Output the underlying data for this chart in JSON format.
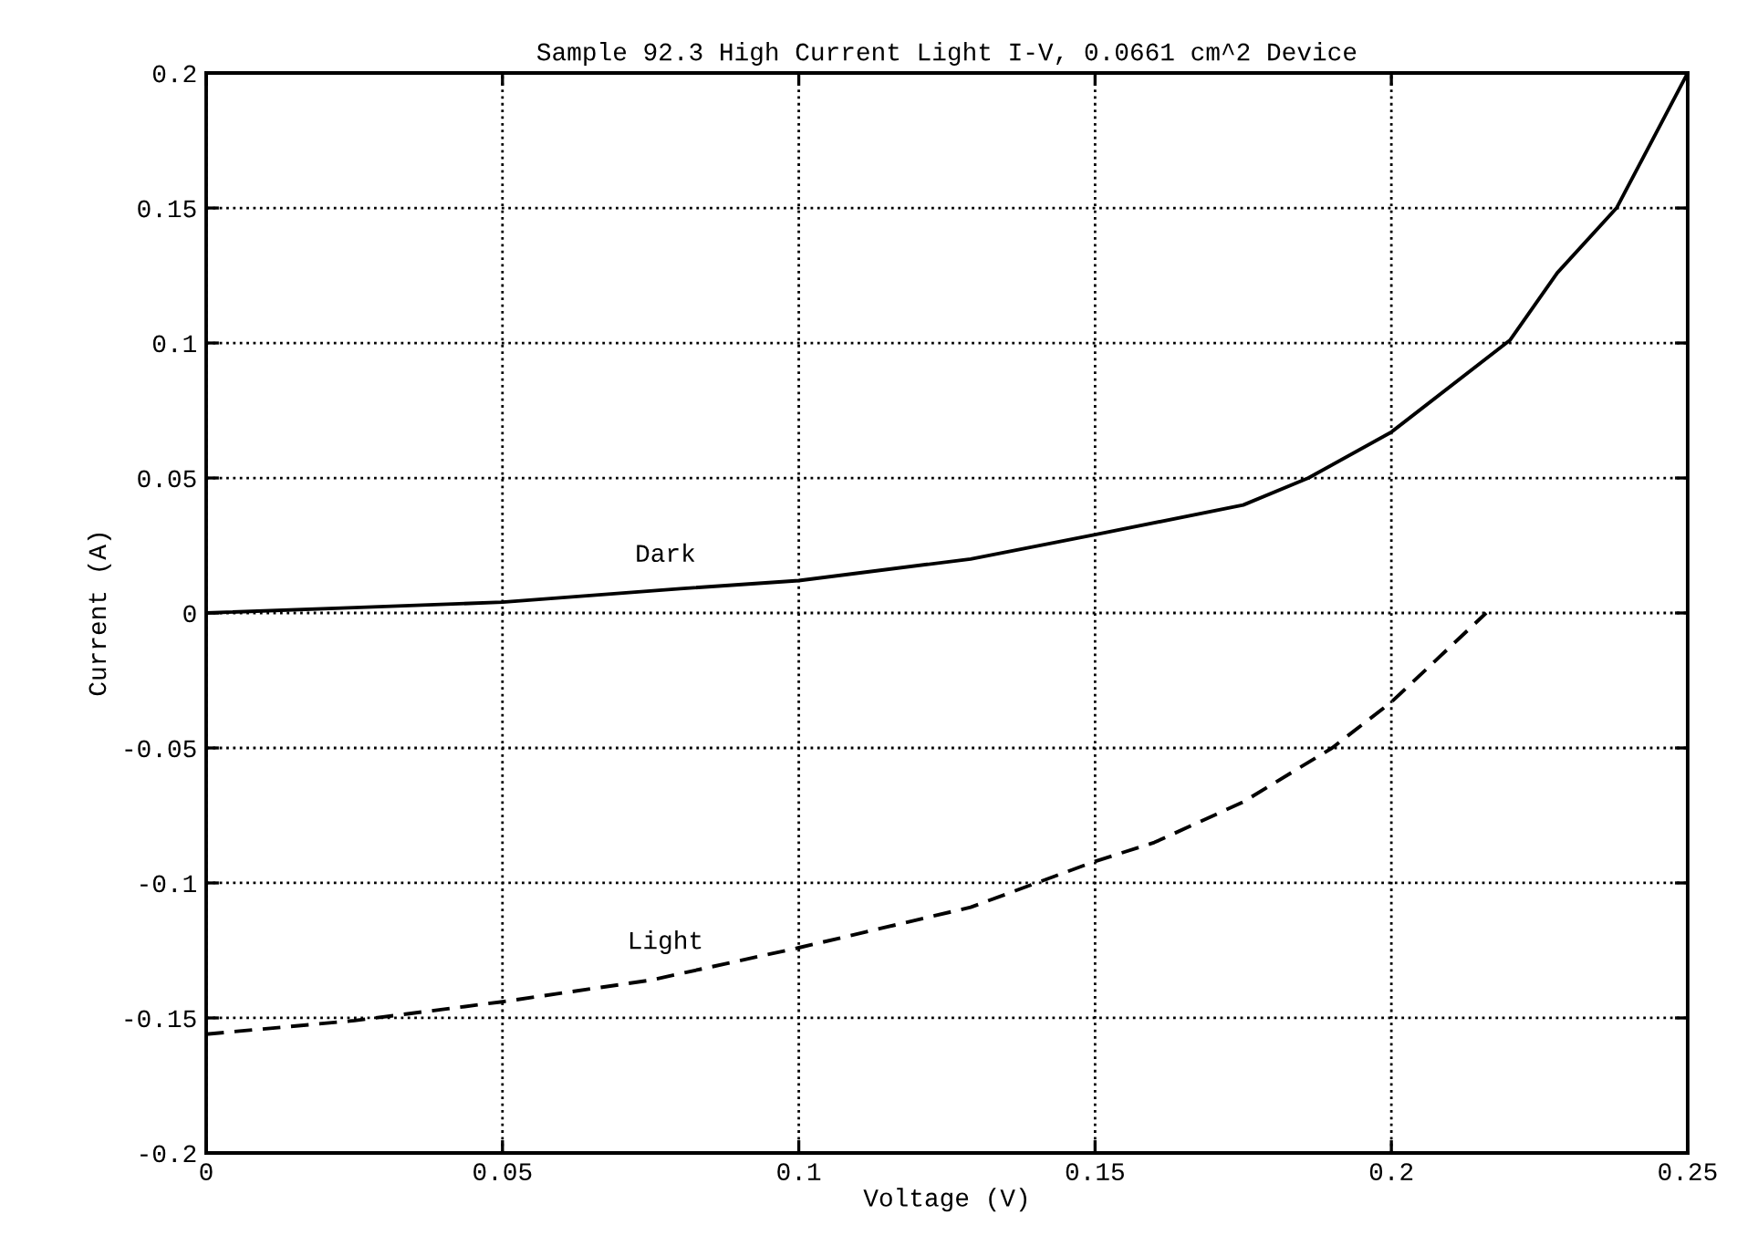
{
  "chart_data": {
    "type": "line",
    "title": "Sample 92.3 High Current Light I-V, 0.0661 cm^2 Device",
    "xlabel": "Voltage (V)",
    "ylabel": "Current (A)",
    "xlim": [
      0,
      0.25
    ],
    "ylim": [
      -0.2,
      0.2
    ],
    "xticks": [
      0,
      0.05,
      0.1,
      0.15,
      0.2,
      0.25
    ],
    "yticks": [
      -0.2,
      -0.15,
      -0.1,
      -0.05,
      0,
      0.05,
      0.1,
      0.15,
      0.2
    ],
    "grid": true,
    "legend": false,
    "marker": "none",
    "series": [
      {
        "name": "Dark",
        "color": "#000000",
        "line_style": "solid",
        "x": [
          0,
          0.025,
          0.05,
          0.08,
          0.1,
          0.129,
          0.15,
          0.175,
          0.186,
          0.2,
          0.22,
          0.228,
          0.238,
          0.244,
          0.25
        ],
        "values": [
          0,
          0.002,
          0.004,
          0.009,
          0.012,
          0.02,
          0.029,
          0.04,
          0.05,
          0.067,
          0.101,
          0.126,
          0.15,
          0.175,
          0.2
        ]
      },
      {
        "name": "Light",
        "color": "#000000",
        "line_style": "dashed",
        "x": [
          0,
          0.025,
          0.05,
          0.075,
          0.1,
          0.129,
          0.15,
          0.16,
          0.175,
          0.19,
          0.2,
          0.216
        ],
        "values": [
          -0.156,
          -0.151,
          -0.144,
          -0.136,
          -0.124,
          -0.109,
          -0.092,
          -0.085,
          -0.07,
          -0.05,
          -0.033,
          0
        ]
      }
    ]
  }
}
